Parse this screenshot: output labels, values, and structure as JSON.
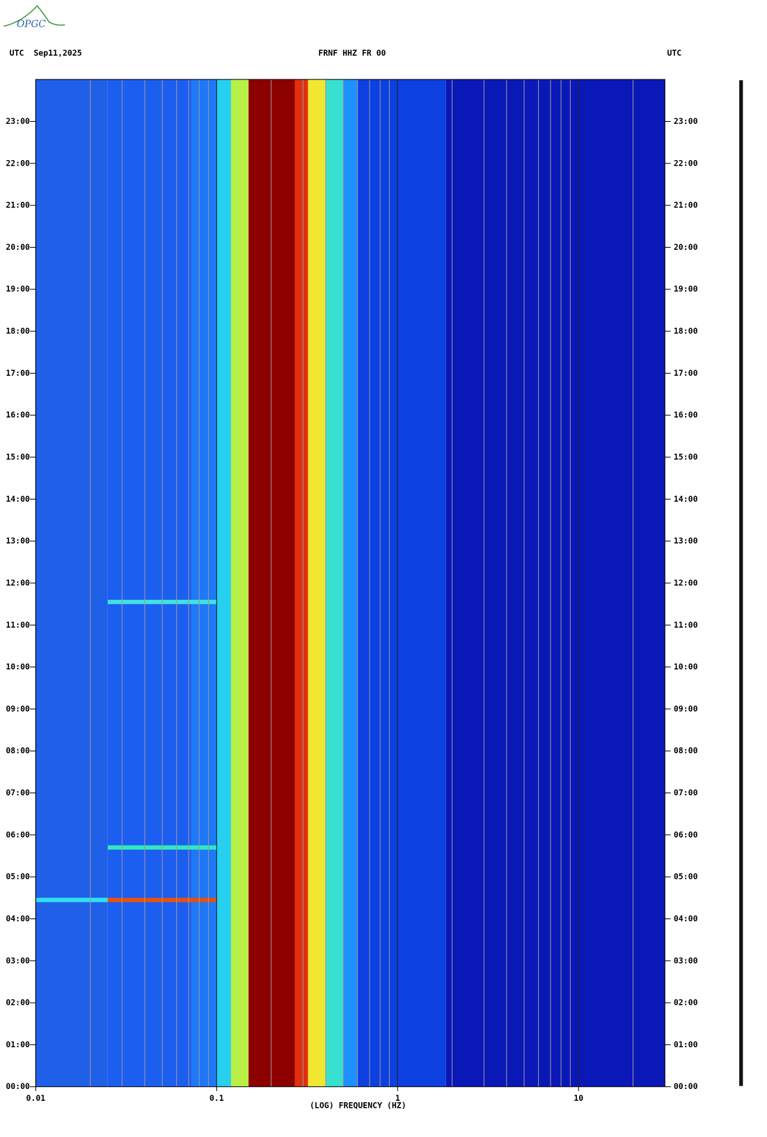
{
  "logo": "OPGC",
  "chart_data": {
    "type": "spectrogram",
    "title_left": "UTC  Sep11,2025",
    "title": "FRNF HHZ FR 00",
    "title_right": "UTC",
    "x_label": "(LOG) FREQUENCY (HZ)",
    "x_log": true,
    "xlim": [
      0.01,
      30
    ],
    "xticks": [
      0.01,
      0.1,
      1,
      10
    ],
    "xminor": [
      0.02,
      0.03,
      0.04,
      0.05,
      0.06,
      0.07,
      0.08,
      0.09,
      0.2,
      0.3,
      0.4,
      0.5,
      0.6,
      0.7,
      0.8,
      0.9,
      2,
      3,
      4,
      5,
      6,
      7,
      8,
      9,
      20
    ],
    "ylim": [
      0,
      24
    ],
    "yticks": [
      {
        "value": 0,
        "label": "00:00"
      },
      {
        "value": 1,
        "label": "01:00"
      },
      {
        "value": 2,
        "label": "02:00"
      },
      {
        "value": 3,
        "label": "03:00"
      },
      {
        "value": 4,
        "label": "04:00"
      },
      {
        "value": 5,
        "label": "05:00"
      },
      {
        "value": 6,
        "label": "06:00"
      },
      {
        "value": 7,
        "label": "07:00"
      },
      {
        "value": 8,
        "label": "08:00"
      },
      {
        "value": 9,
        "label": "09:00"
      },
      {
        "value": 10,
        "label": "10:00"
      },
      {
        "value": 11,
        "label": "11:00"
      },
      {
        "value": 12,
        "label": "12:00"
      },
      {
        "value": 13,
        "label": "13:00"
      },
      {
        "value": 14,
        "label": "14:00"
      },
      {
        "value": 15,
        "label": "15:00"
      },
      {
        "value": 16,
        "label": "16:00"
      },
      {
        "value": 17,
        "label": "17:00"
      },
      {
        "value": 18,
        "label": "18:00"
      },
      {
        "value": 19,
        "label": "19:00"
      },
      {
        "value": 20,
        "label": "20:00"
      },
      {
        "value": 21,
        "label": "21:00"
      },
      {
        "value": 22,
        "label": "22:00"
      },
      {
        "value": 23,
        "label": "23:00"
      }
    ],
    "bands": [
      {
        "from": 0.01,
        "to": 0.025,
        "color": "#2060e8"
      },
      {
        "from": 0.025,
        "to": 0.073,
        "color": "#1c5ef0"
      },
      {
        "from": 0.073,
        "to": 0.1,
        "color": "#1e78f8"
      },
      {
        "from": 0.1,
        "to": 0.12,
        "color": "#28d0f0"
      },
      {
        "from": 0.12,
        "to": 0.15,
        "color": "#b8f048"
      },
      {
        "from": 0.15,
        "to": 0.27,
        "color": "#8c0000"
      },
      {
        "from": 0.27,
        "to": 0.32,
        "color": "#e03010"
      },
      {
        "from": 0.32,
        "to": 0.4,
        "color": "#f0e830"
      },
      {
        "from": 0.4,
        "to": 0.5,
        "color": "#38e0d0"
      },
      {
        "from": 0.5,
        "to": 0.6,
        "color": "#1e90ff"
      },
      {
        "from": 0.6,
        "to": 1.85,
        "color": "#0c40e0"
      },
      {
        "from": 1.85,
        "to": 30,
        "color": "#0a18b8"
      }
    ],
    "events": [
      {
        "time": 4.45,
        "from": 0.01,
        "to": 0.025,
        "color": "#30e0f0"
      },
      {
        "time": 4.45,
        "from": 0.025,
        "to": 0.1,
        "color": "#e85010"
      },
      {
        "time": 5.7,
        "from": 0.025,
        "to": 0.1,
        "color": "#30e8c0"
      },
      {
        "time": 11.55,
        "from": 0.025,
        "to": 0.1,
        "color": "#40e0e0"
      }
    ]
  }
}
